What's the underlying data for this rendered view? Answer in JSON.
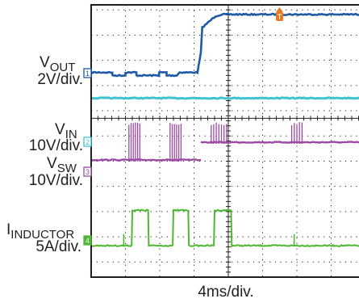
{
  "chart_data": {
    "type": "line",
    "title": "",
    "xlabel": "4ms/div.",
    "grid": true,
    "channels": [
      {
        "id": "1",
        "name_main": "V",
        "name_sub": "OUT",
        "scale": "2V/div.",
        "color": "#1f5aa6"
      },
      {
        "id": "2",
        "name_main": "V",
        "name_sub": "IN",
        "scale": "10V/div.",
        "color": "#3ec3d2"
      },
      {
        "id": "3",
        "name_main": "V",
        "name_sub": "SW",
        "scale": "10V/div.",
        "color": "#9b4aa3"
      },
      {
        "id": "4",
        "name_main": "I",
        "name_sub": "INDUCTOR",
        "scale": "5A/div.",
        "color": "#4fb833"
      }
    ],
    "trigger_label": "T",
    "trigger_color": "#e87722",
    "series": {
      "vout_x": [
        0,
        0.62,
        0.62,
        1.0,
        1.0,
        1.32,
        1.32,
        1.98,
        1.98,
        2.2,
        2.2,
        2.5,
        2.58,
        3.1,
        3.2,
        3.24,
        3.62,
        3.8,
        5.0,
        8.0
      ],
      "vout_y": [
        -0.48,
        -0.48,
        -0.6,
        -0.6,
        -0.48,
        -0.48,
        -0.6,
        -0.6,
        -0.48,
        -0.48,
        -0.6,
        -0.6,
        -0.48,
        -0.48,
        0.3,
        1.3,
        1.75,
        1.82,
        1.82,
        1.82
      ],
      "vin_x": [
        0,
        8.0
      ],
      "vin_y": [
        -1.5,
        -1.5
      ],
      "vsw_x": [
        0,
        8.0
      ],
      "vsw_y": [
        -3.95,
        -3.95
      ],
      "vsw_after_x": [
        3.2,
        8.0
      ],
      "vsw_after_y": [
        -3.25,
        -3.25
      ],
      "vsw_bursts": [
        [
          1.1,
          1.42
        ],
        [
          2.3,
          2.62
        ],
        [
          3.5,
          3.95
        ],
        [
          5.85,
          6.15
        ]
      ],
      "vsw_burst_top": -2.45,
      "il_pulses": [
        [
          1.18,
          1.68
        ],
        [
          2.38,
          2.85
        ],
        [
          3.58,
          4.1
        ]
      ],
      "il_pulse_y": -5.95,
      "il_base_y": -7.35,
      "il_spikes": [
        0.95,
        5.92
      ]
    },
    "xlim": [
      0,
      8
    ],
    "ylim": [
      -8.6,
      2.2
    ]
  }
}
